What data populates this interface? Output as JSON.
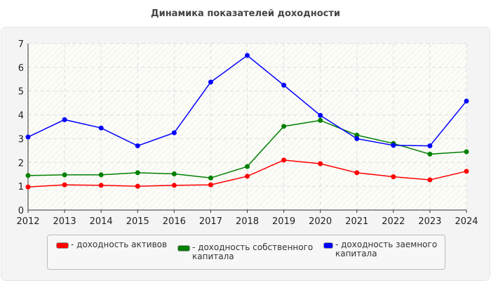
{
  "chart_data": {
    "type": "line",
    "title": "Динамика показателей доходности",
    "x": [
      2012,
      2013,
      2014,
      2015,
      2016,
      2017,
      2018,
      2019,
      2020,
      2021,
      2022,
      2023,
      2024
    ],
    "ylim": [
      0,
      7
    ],
    "yticks": [
      0,
      1,
      2,
      3,
      4,
      5,
      6,
      7
    ],
    "grid": true,
    "legend_position": "bottom",
    "series": [
      {
        "name": "- доходность активов",
        "color": "#ff0000",
        "values": [
          0.97,
          1.06,
          1.04,
          1.0,
          1.04,
          1.06,
          1.42,
          2.1,
          1.95,
          1.57,
          1.4,
          1.27,
          1.63
        ]
      },
      {
        "name": "- доходность собственного капитала",
        "color": "#008000",
        "values": [
          1.45,
          1.48,
          1.48,
          1.57,
          1.52,
          1.35,
          1.83,
          3.52,
          3.77,
          3.15,
          2.8,
          2.35,
          2.45
        ]
      },
      {
        "name": "- доходность заемного капитала",
        "color": "#0000ff",
        "values": [
          3.07,
          3.8,
          3.45,
          2.7,
          3.25,
          5.38,
          6.5,
          5.25,
          3.98,
          3.0,
          2.72,
          2.7,
          4.58
        ]
      }
    ]
  }
}
